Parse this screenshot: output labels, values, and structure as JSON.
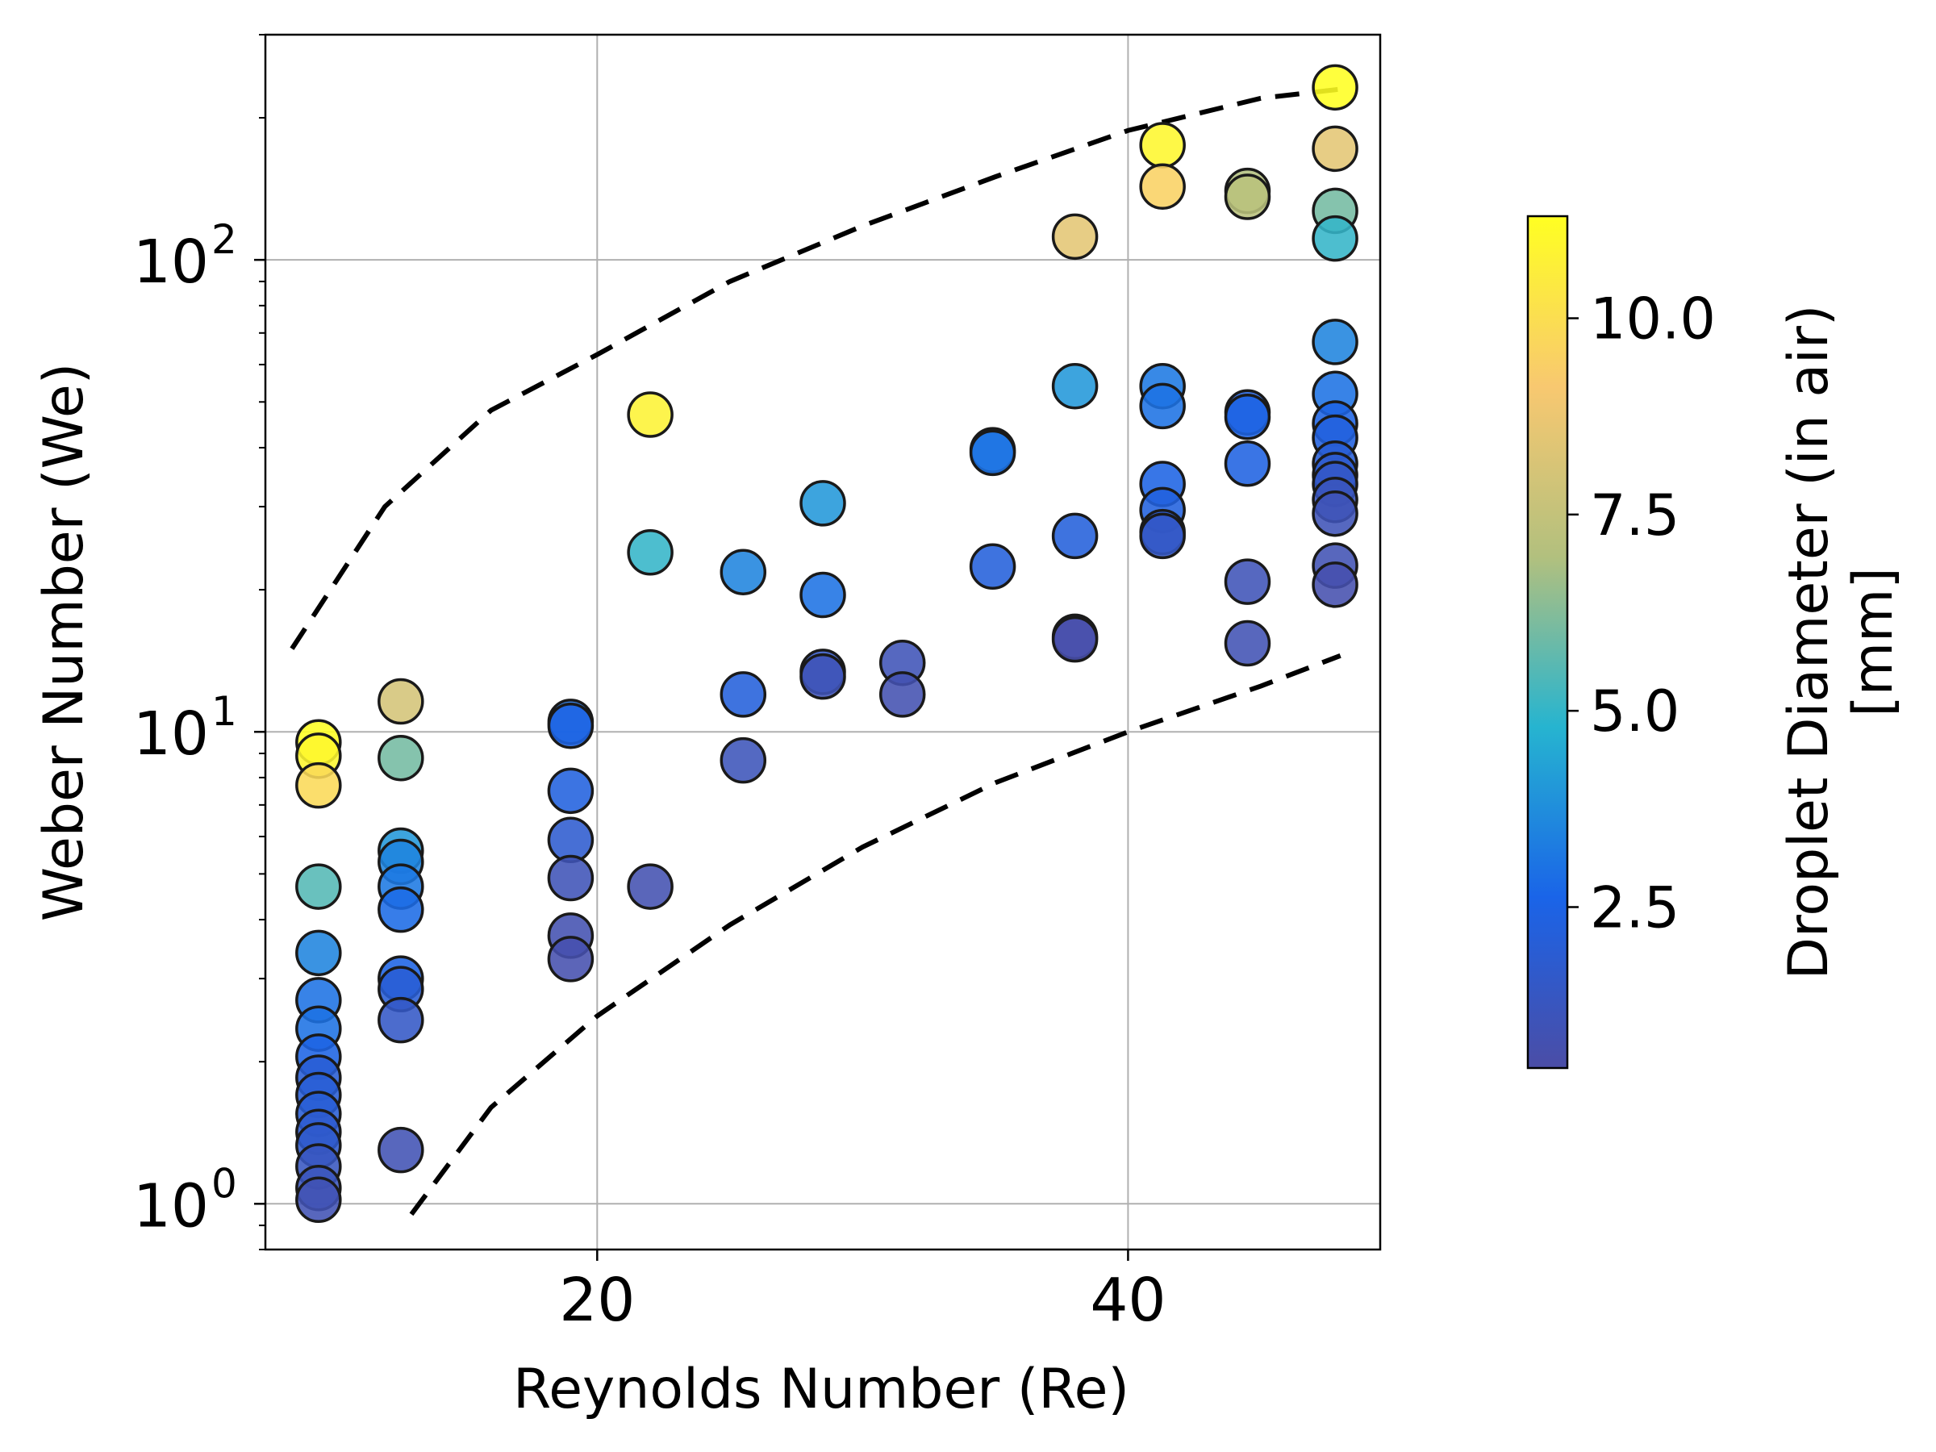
{
  "chart_data": {
    "type": "scatter",
    "title": "",
    "xlabel": "Reynolds Number (Re)",
    "ylabel": "Weber Number (We)",
    "xlim": [
      7.5,
      49.5
    ],
    "ylim": [
      0.8,
      300
    ],
    "yscale": "log",
    "grid": true,
    "xticks": [
      {
        "value": 20,
        "label": "20"
      },
      {
        "value": 40,
        "label": "40"
      }
    ],
    "yticks": [
      {
        "value": 1,
        "base": "10",
        "exp": "0"
      },
      {
        "value": 10,
        "base": "10",
        "exp": "1"
      },
      {
        "value": 100,
        "base": "10",
        "exp": "2"
      }
    ],
    "colorbar": {
      "label_line1": "Droplet Diameter (in air)",
      "label_line2": "[mm]",
      "range": [
        0.45,
        11.3
      ],
      "ticks": [
        {
          "value": 2.5,
          "label": "2.5"
        },
        {
          "value": 5.0,
          "label": "5.0"
        },
        {
          "value": 7.5,
          "label": "7.5"
        },
        {
          "value": 10.0,
          "label": "10.0"
        }
      ],
      "colors": [
        "#4b4da6",
        "#1a64e8",
        "#26b4d0",
        "#b2c07e",
        "#f8c870",
        "#ffff22"
      ]
    },
    "guide_lines": [
      {
        "name": "upper bound",
        "points": [
          [
            8.5,
            15
          ],
          [
            12,
            30
          ],
          [
            16,
            48
          ],
          [
            20,
            63
          ],
          [
            25,
            90
          ],
          [
            30,
            118
          ],
          [
            35,
            150
          ],
          [
            40,
            188
          ],
          [
            45,
            220
          ],
          [
            48,
            230
          ]
        ]
      },
      {
        "name": "lower bound",
        "points": [
          [
            13,
            0.95
          ],
          [
            16,
            1.6
          ],
          [
            20,
            2.5
          ],
          [
            25,
            3.9
          ],
          [
            30,
            5.7
          ],
          [
            35,
            7.8
          ],
          [
            40,
            10
          ],
          [
            45,
            12.5
          ],
          [
            48,
            14.5
          ]
        ]
      }
    ],
    "points": [
      {
        "x": 9.5,
        "y": 9.5,
        "d": 11.3
      },
      {
        "x": 9.5,
        "y": 8.9,
        "d": 11.0
      },
      {
        "x": 9.5,
        "y": 7.7,
        "d": 9.8
      },
      {
        "x": 9.5,
        "y": 4.7,
        "d": 5.5
      },
      {
        "x": 9.5,
        "y": 3.4,
        "d": 3.5
      },
      {
        "x": 9.5,
        "y": 2.7,
        "d": 3.0
      },
      {
        "x": 9.5,
        "y": 2.35,
        "d": 3.0
      },
      {
        "x": 9.5,
        "y": 2.05,
        "d": 2.5
      },
      {
        "x": 9.5,
        "y": 1.85,
        "d": 2.0
      },
      {
        "x": 9.5,
        "y": 1.7,
        "d": 2.0
      },
      {
        "x": 9.5,
        "y": 1.55,
        "d": 2.0
      },
      {
        "x": 9.5,
        "y": 1.42,
        "d": 1.8
      },
      {
        "x": 9.5,
        "y": 1.33,
        "d": 1.7
      },
      {
        "x": 9.5,
        "y": 1.2,
        "d": 1.3
      },
      {
        "x": 9.5,
        "y": 1.08,
        "d": 1.2
      },
      {
        "x": 9.5,
        "y": 1.02,
        "d": 0.9
      },
      {
        "x": 12.6,
        "y": 11.6,
        "d": 8.0
      },
      {
        "x": 12.6,
        "y": 8.8,
        "d": 6.0
      },
      {
        "x": 12.6,
        "y": 5.6,
        "d": 4.0
      },
      {
        "x": 12.6,
        "y": 5.3,
        "d": 3.5
      },
      {
        "x": 12.6,
        "y": 4.7,
        "d": 3.2
      },
      {
        "x": 12.6,
        "y": 4.2,
        "d": 2.8
      },
      {
        "x": 12.6,
        "y": 3.0,
        "d": 2.5
      },
      {
        "x": 12.6,
        "y": 2.85,
        "d": 2.0
      },
      {
        "x": 12.6,
        "y": 2.45,
        "d": 1.5
      },
      {
        "x": 12.6,
        "y": 1.3,
        "d": 0.9
      },
      {
        "x": 19.0,
        "y": 10.5,
        "d": 3.0
      },
      {
        "x": 19.0,
        "y": 10.3,
        "d": 2.5
      },
      {
        "x": 19.0,
        "y": 7.5,
        "d": 2.3
      },
      {
        "x": 19.0,
        "y": 5.9,
        "d": 1.8
      },
      {
        "x": 19.0,
        "y": 4.9,
        "d": 1.0
      },
      {
        "x": 19.0,
        "y": 3.7,
        "d": 0.8
      },
      {
        "x": 19.0,
        "y": 3.3,
        "d": 0.7
      },
      {
        "x": 22.0,
        "y": 47,
        "d": 10.8
      },
      {
        "x": 22.0,
        "y": 24,
        "d": 5.0
      },
      {
        "x": 22.0,
        "y": 4.7,
        "d": 0.8
      },
      {
        "x": 25.5,
        "y": 21.8,
        "d": 3.5
      },
      {
        "x": 25.5,
        "y": 12.0,
        "d": 2.2
      },
      {
        "x": 25.5,
        "y": 8.7,
        "d": 1.1
      },
      {
        "x": 28.5,
        "y": 30.5,
        "d": 4.0
      },
      {
        "x": 28.5,
        "y": 19.5,
        "d": 3.0
      },
      {
        "x": 28.5,
        "y": 13.4,
        "d": 1.5
      },
      {
        "x": 28.5,
        "y": 13.1,
        "d": 1.0
      },
      {
        "x": 31.5,
        "y": 14.0,
        "d": 1.0
      },
      {
        "x": 31.5,
        "y": 12.0,
        "d": 0.8
      },
      {
        "x": 34.9,
        "y": 39.5,
        "d": 3.5
      },
      {
        "x": 34.9,
        "y": 39.0,
        "d": 3.0
      },
      {
        "x": 34.9,
        "y": 22.4,
        "d": 2.2
      },
      {
        "x": 38.0,
        "y": 112,
        "d": 8.5
      },
      {
        "x": 38.0,
        "y": 54,
        "d": 4.0
      },
      {
        "x": 38.0,
        "y": 26,
        "d": 2.2
      },
      {
        "x": 38.0,
        "y": 15.9,
        "d": 0.8
      },
      {
        "x": 38.0,
        "y": 15.7,
        "d": 0.6
      },
      {
        "x": 41.3,
        "y": 175,
        "d": 11.0
      },
      {
        "x": 41.3,
        "y": 143,
        "d": 9.5
      },
      {
        "x": 41.3,
        "y": 54,
        "d": 3.2
      },
      {
        "x": 41.3,
        "y": 49,
        "d": 3.0
      },
      {
        "x": 41.3,
        "y": 33.5,
        "d": 2.5
      },
      {
        "x": 41.3,
        "y": 29.5,
        "d": 2.3
      },
      {
        "x": 41.3,
        "y": 26.5,
        "d": 1.8
      },
      {
        "x": 41.3,
        "y": 26.0,
        "d": 1.5
      },
      {
        "x": 44.5,
        "y": 140,
        "d": 7.0
      },
      {
        "x": 44.5,
        "y": 136,
        "d": 7.2
      },
      {
        "x": 44.5,
        "y": 47.5,
        "d": 2.3
      },
      {
        "x": 44.5,
        "y": 46.5,
        "d": 2.5
      },
      {
        "x": 44.5,
        "y": 37,
        "d": 2.4
      },
      {
        "x": 44.5,
        "y": 20.8,
        "d": 1.0
      },
      {
        "x": 44.5,
        "y": 15.4,
        "d": 0.9
      },
      {
        "x": 47.8,
        "y": 232,
        "d": 11.3
      },
      {
        "x": 47.8,
        "y": 172,
        "d": 8.5
      },
      {
        "x": 47.8,
        "y": 127,
        "d": 6.0
      },
      {
        "x": 47.8,
        "y": 111,
        "d": 5.0
      },
      {
        "x": 47.8,
        "y": 67,
        "d": 3.5
      },
      {
        "x": 47.8,
        "y": 52,
        "d": 3.0
      },
      {
        "x": 47.8,
        "y": 45,
        "d": 2.5
      },
      {
        "x": 47.8,
        "y": 42,
        "d": 2.3
      },
      {
        "x": 47.8,
        "y": 37,
        "d": 2.0
      },
      {
        "x": 47.8,
        "y": 35,
        "d": 1.8
      },
      {
        "x": 47.8,
        "y": 33.5,
        "d": 1.5
      },
      {
        "x": 47.8,
        "y": 31,
        "d": 1.2
      },
      {
        "x": 47.8,
        "y": 29,
        "d": 1.0
      },
      {
        "x": 47.8,
        "y": 22.5,
        "d": 0.9
      },
      {
        "x": 47.8,
        "y": 20.5,
        "d": 0.7
      }
    ]
  }
}
